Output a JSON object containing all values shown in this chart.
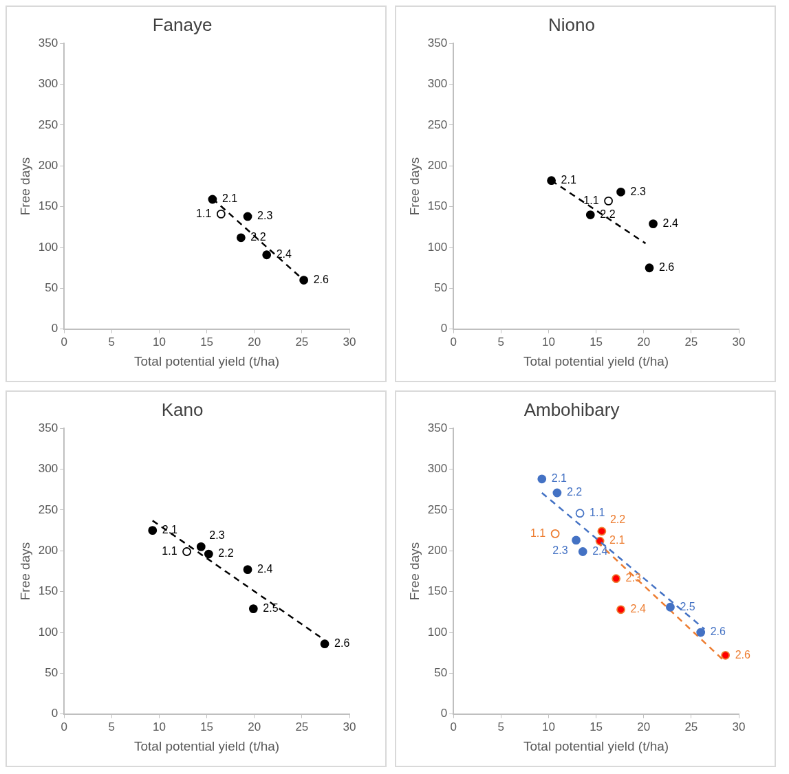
{
  "chart_data": [
    {
      "type": "scatter",
      "title": "Fanaye",
      "xlabel": "Total potential yield (t/ha)",
      "ylabel": "Free days",
      "xlim": [
        0,
        30
      ],
      "xticks": [
        0,
        5,
        10,
        15,
        20,
        25,
        30
      ],
      "ylim": [
        0,
        350
      ],
      "yticks": [
        0,
        50,
        100,
        150,
        200,
        250,
        300,
        350
      ],
      "grid": false,
      "legend": false,
      "series": [
        {
          "color": "#000000",
          "marker": "circle",
          "x": [
            15.6,
            18.6,
            19.3,
            21.3,
            25.2
          ],
          "values": [
            159,
            112,
            138,
            91,
            60
          ]
        },
        {
          "color": "#ffffff",
          "marker": "circle",
          "x": [
            16.5
          ],
          "values": [
            141
          ]
        },
        {
          "type": "line",
          "color": "#000000",
          "marker": "none",
          "line_style": "dashed",
          "x": [
            15.6,
            25
          ],
          "values": [
            160,
            62
          ]
        }
      ],
      "annotations": [
        {
          "text": "2.1",
          "x": 15.6,
          "y": 159
        },
        {
          "text": "2.2",
          "x": 18.6,
          "y": 112
        },
        {
          "text": "2.3",
          "x": 19.3,
          "y": 138
        },
        {
          "text": "2.4",
          "x": 21.3,
          "y": 91
        },
        {
          "text": "2.6",
          "x": 25.2,
          "y": 60
        },
        {
          "text": "1.1",
          "x": 16.5,
          "y": 141
        }
      ]
    },
    {
      "type": "scatter",
      "title": "Niono",
      "xlabel": "Total potential yield (t/ha)",
      "ylabel": "Free days",
      "xlim": [
        0,
        30
      ],
      "xticks": [
        0,
        5,
        10,
        15,
        20,
        25,
        30
      ],
      "ylim": [
        0,
        350
      ],
      "yticks": [
        0,
        50,
        100,
        150,
        200,
        250,
        300,
        350
      ],
      "grid": false,
      "legend": false,
      "series": [
        {
          "color": "#000000",
          "marker": "circle",
          "x": [
            10.3,
            14.4,
            17.6,
            21.0,
            20.6
          ],
          "values": [
            182,
            140,
            168,
            129,
            75
          ]
        },
        {
          "color": "#ffffff",
          "marker": "circle",
          "x": [
            16.3
          ],
          "values": [
            157
          ]
        },
        {
          "type": "line",
          "color": "#000000",
          "marker": "none",
          "line_style": "dashed",
          "x": [
            10.3,
            20.2
          ],
          "values": [
            182,
            105
          ]
        }
      ],
      "annotations": [
        {
          "text": "2.1",
          "x": 10.3,
          "y": 182
        },
        {
          "text": "2.2",
          "x": 14.4,
          "y": 140
        },
        {
          "text": "2.3",
          "x": 17.6,
          "y": 168
        },
        {
          "text": "2.4",
          "x": 21.0,
          "y": 129
        },
        {
          "text": "2.6",
          "x": 20.6,
          "y": 75
        },
        {
          "text": "1.1",
          "x": 16.3,
          "y": 157
        }
      ]
    },
    {
      "type": "scatter",
      "title": "Kano",
      "xlabel": "Total potential yield (t/ha)",
      "ylabel": "Free days",
      "xlim": [
        0,
        30
      ],
      "xticks": [
        0,
        5,
        10,
        15,
        20,
        25,
        30
      ],
      "ylim": [
        0,
        350
      ],
      "yticks": [
        0,
        50,
        100,
        150,
        200,
        250,
        300,
        350
      ],
      "grid": false,
      "legend": false,
      "series": [
        {
          "color": "#000000",
          "marker": "circle",
          "x": [
            9.3,
            15.2,
            14.4,
            19.3,
            19.9,
            27.4
          ],
          "values": [
            225,
            196,
            205,
            177,
            129,
            86
          ]
        },
        {
          "color": "#ffffff",
          "marker": "circle",
          "x": [
            12.9
          ],
          "values": [
            199
          ]
        },
        {
          "type": "line",
          "color": "#000000",
          "marker": "none",
          "line_style": "dashed",
          "x": [
            9.3,
            27.1
          ],
          "values": [
            237,
            93
          ]
        }
      ],
      "annotations": [
        {
          "text": "2.1",
          "x": 9.3,
          "y": 225
        },
        {
          "text": "2.2",
          "x": 15.2,
          "y": 196
        },
        {
          "text": "2.3",
          "x": 14.4,
          "y": 205
        },
        {
          "text": "2.4",
          "x": 19.3,
          "y": 177
        },
        {
          "text": "2.5",
          "x": 19.9,
          "y": 129
        },
        {
          "text": "2.6",
          "x": 27.4,
          "y": 86
        },
        {
          "text": "1.1",
          "x": 12.9,
          "y": 199
        }
      ]
    },
    {
      "type": "scatter",
      "title": "Ambohibary",
      "xlabel": "Total potential yield (t/ha)",
      "ylabel": "Free days",
      "xlim": [
        0,
        30
      ],
      "xticks": [
        0,
        5,
        10,
        15,
        20,
        25,
        30
      ],
      "ylim": [
        0,
        350
      ],
      "yticks": [
        0,
        50,
        100,
        150,
        200,
        250,
        300,
        350
      ],
      "grid": false,
      "legend": false,
      "series": [
        {
          "color": "#4472c4",
          "marker": "circle",
          "x": [
            9.3,
            10.9,
            12.9,
            13.6,
            22.8,
            26.0
          ],
          "values": [
            288,
            271,
            213,
            199,
            131,
            100
          ]
        },
        {
          "color": "#ffffff",
          "marker": "circle",
          "x": [
            13.3
          ],
          "values": [
            246
          ]
        },
        {
          "type": "line",
          "color": "#4472c4",
          "marker": "none",
          "line_style": "dashed",
          "x": [
            9.3,
            26.4
          ],
          "values": [
            271,
            104
          ]
        },
        {
          "color": "#ff0000",
          "marker": "circle",
          "x": [
            15.4,
            15.6,
            17.1,
            17.6,
            28.6
          ],
          "values": [
            212,
            224,
            166,
            128,
            72
          ]
        },
        {
          "color": "#ffffff",
          "marker": "circle",
          "x": [
            10.7
          ],
          "values": [
            221
          ]
        },
        {
          "type": "line",
          "color": "#ed7d31",
          "marker": "none",
          "line_style": "dashed",
          "x": [
            15.1,
            28.3
          ],
          "values": [
            211,
            67
          ]
        }
      ],
      "annotations": [
        {
          "text": "2.1",
          "x": 9.3,
          "y": 288
        },
        {
          "text": "2.2",
          "x": 10.9,
          "y": 271
        },
        {
          "text": "2.3",
          "x": 12.9,
          "y": 213
        },
        {
          "text": "2.4",
          "x": 13.6,
          "y": 199
        },
        {
          "text": "2.5",
          "x": 22.8,
          "y": 131
        },
        {
          "text": "2.6",
          "x": 26.0,
          "y": 100
        },
        {
          "text": "1.1",
          "x": 13.3,
          "y": 246
        },
        {
          "text": "2.1",
          "x": 15.4,
          "y": 212
        },
        {
          "text": "2.2",
          "x": 15.6,
          "y": 224
        },
        {
          "text": "2.3",
          "x": 17.1,
          "y": 166
        },
        {
          "text": "2.4",
          "x": 17.6,
          "y": 128
        },
        {
          "text": "2.6",
          "x": 28.6,
          "y": 72
        },
        {
          "text": "1.1",
          "x": 10.7,
          "y": 221
        }
      ]
    }
  ]
}
